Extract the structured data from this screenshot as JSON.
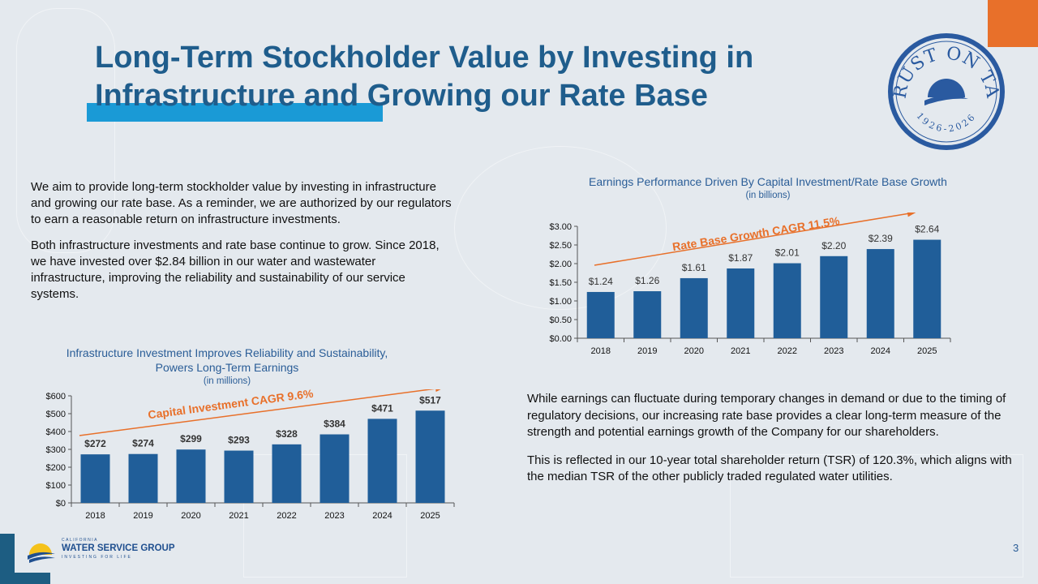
{
  "title": "Long-Term Stockholder Value by Investing in Infrastructure and Growing our Rate Base",
  "seal": {
    "text": "TRUST ON TAP",
    "years": "1926-2026"
  },
  "intro_paragraphs": [
    "We aim to provide long-term stockholder value by investing in infrastructure and growing our rate base. As a reminder, we are authorized by our regulators to earn a reasonable return on infrastructure investments.",
    "Both infrastructure investments and rate base continue to grow. Since 2018, we have invested over $2.84 billion in our water and wastewater infrastructure, improving the reliability and sustainability of our service systems."
  ],
  "right_paragraphs": [
    "While earnings can fluctuate during temporary changes in demand or due to the timing of regulatory decisions, our increasing rate base provides a clear long-term measure of the strength and potential earnings growth of the Company for our shareholders.",
    "This is reflected in our 10-year total shareholder return (TSR) of 120.3%, which aligns with the median TSR of the other publicly traded regulated water utilities."
  ],
  "footer": {
    "logo_top": "CALIFORNIA",
    "logo_main": "WATER SERVICE GROUP",
    "logo_tag": "INVESTING FOR LIFE",
    "page_number": "3"
  },
  "colors": {
    "bar": "#205e99",
    "accent_orange": "#e8702a",
    "title": "#1f5d8c",
    "accent_blue": "#1a9ad6"
  },
  "chart_data": [
    {
      "type": "bar",
      "title": "Infrastructure Investment Improves Reliability and Sustainability, Powers Long-Term Earnings",
      "subtitle": "(in millions)",
      "categories": [
        "2018",
        "2019",
        "2020",
        "2021",
        "2022",
        "2023",
        "2024",
        "2025"
      ],
      "values": [
        272,
        274,
        299,
        293,
        328,
        384,
        471,
        517
      ],
      "data_labels": [
        "$272",
        "$274",
        "$299",
        "$293",
        "$328",
        "$384",
        "$471",
        "$517"
      ],
      "yticks": [
        "$0",
        "$100",
        "$200",
        "$300",
        "$400",
        "$500",
        "$600"
      ],
      "ylim": [
        0,
        600
      ],
      "annotation": "Capital Investment CAGR 9.6%",
      "grid": false
    },
    {
      "type": "bar",
      "title": "Earnings Performance Driven By Capital Investment/Rate Base Growth",
      "subtitle": "(in billions)",
      "categories": [
        "2018",
        "2019",
        "2020",
        "2021",
        "2022",
        "2023",
        "2024",
        "2025"
      ],
      "values": [
        1.24,
        1.26,
        1.61,
        1.87,
        2.01,
        2.2,
        2.39,
        2.64
      ],
      "data_labels": [
        "$1.24",
        "$1.26",
        "$1.61",
        "$1.87",
        "$2.01",
        "$2.20",
        "$2.39",
        "$2.64"
      ],
      "yticks": [
        "$0.00",
        "$0.50",
        "$1.00",
        "$1.50",
        "$2.00",
        "$2.50",
        "$3.00"
      ],
      "ylim": [
        0,
        3
      ],
      "annotation": "Rate Base Growth CAGR 11.5%",
      "grid": false
    }
  ]
}
